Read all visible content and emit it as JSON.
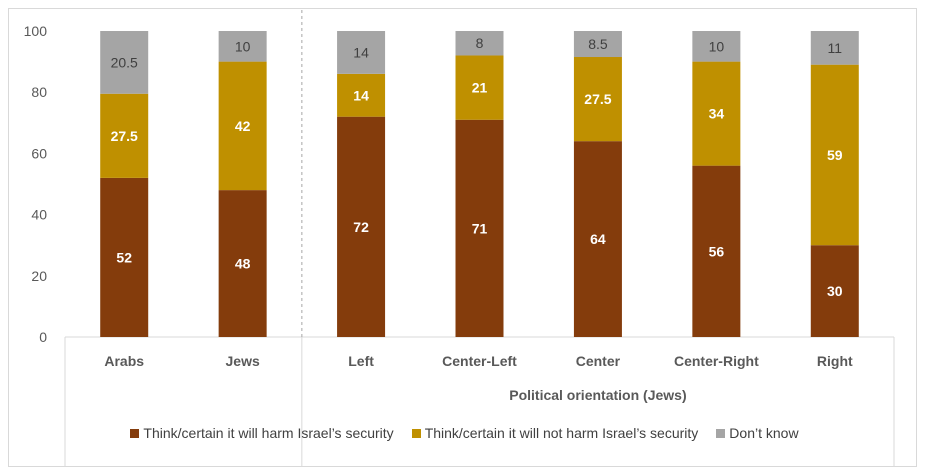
{
  "chart_data": {
    "type": "bar",
    "stacked": true,
    "categories": [
      "Arabs",
      "Jews",
      "Left",
      "Center-Left",
      "Center",
      "Center-Right",
      "Right"
    ],
    "group_label": "Political orientation (Jews)",
    "group_categories": [
      "Left",
      "Center-Left",
      "Center",
      "Center-Right",
      "Right"
    ],
    "series": [
      {
        "name": "Think/certain it will harm Israel’s security",
        "color": "#843C0C",
        "values": [
          52,
          48,
          72,
          71,
          64,
          56,
          30
        ]
      },
      {
        "name": "Think/certain it will not harm Israel’s security",
        "color": "#BF9000",
        "values": [
          27.5,
          42,
          14,
          21,
          27.5,
          34,
          59
        ]
      },
      {
        "name": "Don’t know",
        "color": "#A5A5A5",
        "values": [
          20.5,
          10,
          14,
          8,
          8.5,
          10,
          11
        ]
      }
    ],
    "ylim": [
      0,
      100
    ],
    "yticks": [
      0,
      20,
      40,
      60,
      80,
      100
    ],
    "grid": false,
    "legend_position": "bottom"
  }
}
